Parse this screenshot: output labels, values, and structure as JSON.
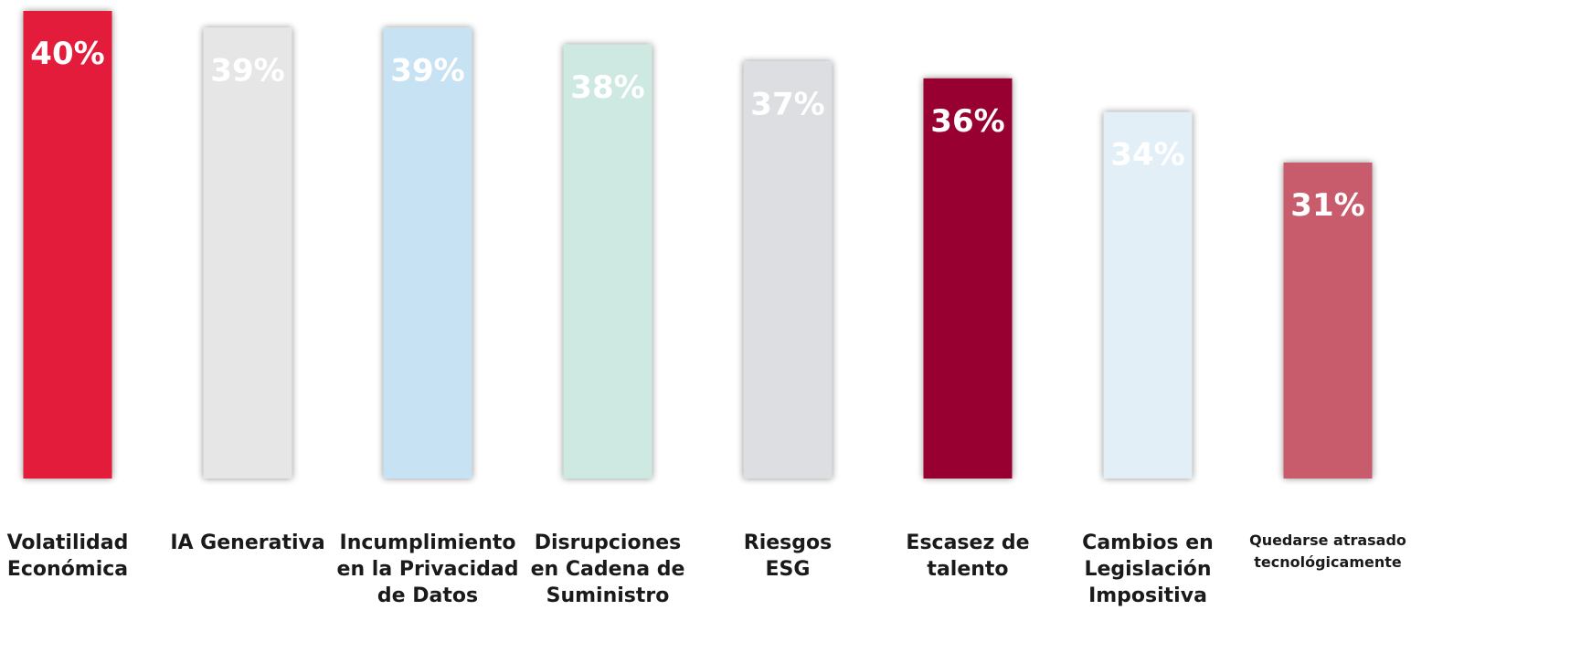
{
  "chart_data": {
    "type": "bar",
    "categories": [
      "Volatilidad\nEconómica",
      "IA Generativa",
      "Incumplimiento\nen la Privacidad\nde Datos",
      "Disrupciones\nen Cadena de\nSuministro",
      "Riesgos\nESG",
      "Escasez de\ntalento",
      "Cambios en\nLegislación\nImpositiva",
      "Quedarse atrasado\ntecnológicamente"
    ],
    "values": [
      40,
      39,
      39,
      38,
      37,
      36,
      34,
      31
    ],
    "value_labels": [
      "40%",
      "39%",
      "39%",
      "38%",
      "37%",
      "36%",
      "34%",
      "31%"
    ],
    "colors": [
      "#e31b3b",
      "#e6e6e6",
      "#c6e2f3",
      "#cde9e1",
      "#dcdee2",
      "#990031",
      "#e3eff7",
      "#c85c6c"
    ],
    "title": "",
    "xlabel": "",
    "ylabel": "",
    "ylim": [
      0,
      40
    ],
    "grid": false,
    "legend": "none"
  }
}
